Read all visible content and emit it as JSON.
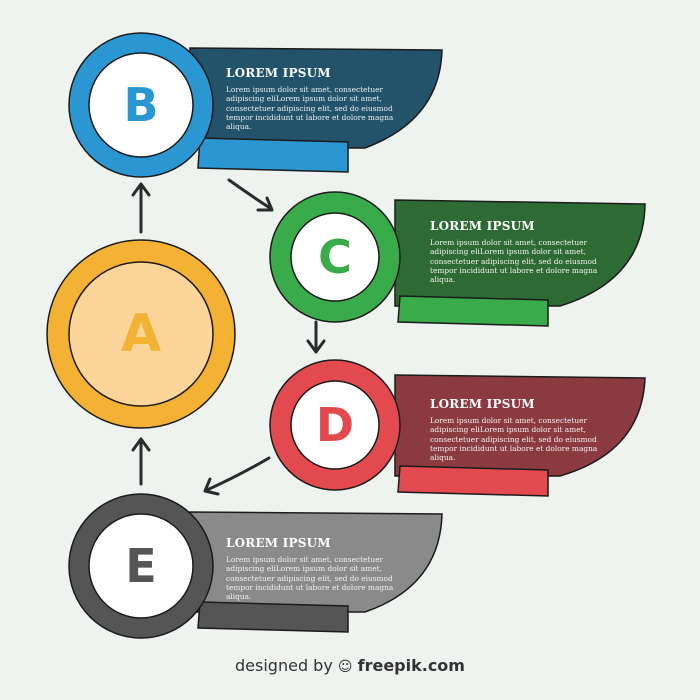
{
  "steps": [
    {
      "letter": "B",
      "title": "LOREM IPSUM",
      "text": "Lorem ipsum dolor sit amet, consectetuer adipiscing eliLorem ipsum dolor sit amet, consectetuer adipiscing elit, sed do eiusmod tempor incididunt ut labore et dolore magna aliqua.",
      "color": "#2a97d3",
      "box": "#23536a"
    },
    {
      "letter": "C",
      "title": "LOREM IPSUM",
      "text": "Lorem ipsum dolor sit amet, consectetuer adipiscing eliLorem ipsum dolor sit amet, consectetuer adipiscing elit, sed do eiusmod tempor incididunt ut labore et dolore magna aliqua.",
      "color": "#3aab4a",
      "box": "#2e6b34"
    },
    {
      "letter": "D",
      "title": "LOREM IPSUM",
      "text": "Lorem ipsum dolor sit amet, consectetuer adipiscing eliLorem ipsum dolor sit amet, consectetuer adipiscing elit, sed do eiusmod tempor incididunt ut labore et dolore magna aliqua.",
      "color": "#e34a4f",
      "box": "#8b3b3f"
    },
    {
      "letter": "E",
      "title": "LOREM IPSUM",
      "text": "Lorem ipsum dolor sit amet, consectetuer adipiscing eliLorem ipsum dolor sit amet, consectetuer adipiscing elit, sed do eiusmod tempor incididunt ut labore et dolore magna aliqua.",
      "color": "#555555",
      "box": "#8a8a8a"
    }
  ],
  "center": {
    "letter": "A",
    "color": "#f4b234",
    "inner": "#fcd59a"
  },
  "footer": {
    "prefix": "designed by",
    "brand": "freepik.com"
  }
}
